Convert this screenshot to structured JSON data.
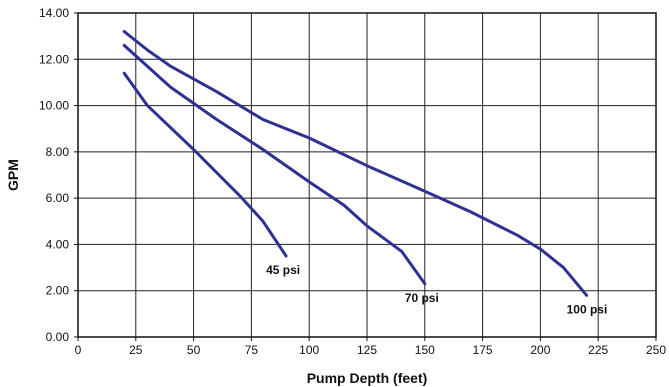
{
  "chart_data": {
    "type": "line",
    "title": "",
    "xlabel": "Pump Depth (feet)",
    "ylabel": "GPM",
    "xlim": [
      0,
      250
    ],
    "ylim": [
      0,
      14
    ],
    "x_ticks": [
      "0",
      "25",
      "50",
      "75",
      "100",
      "125",
      "150",
      "175",
      "200",
      "225",
      "250"
    ],
    "y_ticks": [
      "0.00",
      "2.00",
      "4.00",
      "6.00",
      "8.00",
      "10.00",
      "12.00",
      "14.00"
    ],
    "grid": true,
    "legend": "none",
    "line_color": "#2e3192",
    "series": [
      {
        "name": "45 psi",
        "points": [
          [
            20,
            11.4
          ],
          [
            30,
            10.0
          ],
          [
            50,
            8.1
          ],
          [
            70,
            6.1
          ],
          [
            80,
            5.0
          ],
          [
            90,
            3.5
          ]
        ]
      },
      {
        "name": "70 psi",
        "points": [
          [
            20,
            12.6
          ],
          [
            40,
            10.8
          ],
          [
            60,
            9.4
          ],
          [
            80,
            8.1
          ],
          [
            100,
            6.7
          ],
          [
            115,
            5.7
          ],
          [
            125,
            4.8
          ],
          [
            140,
            3.7
          ],
          [
            150,
            2.3
          ]
        ]
      },
      {
        "name": "100 psi",
        "points": [
          [
            20,
            13.2
          ],
          [
            30,
            12.4
          ],
          [
            40,
            11.7
          ],
          [
            60,
            10.6
          ],
          [
            80,
            9.4
          ],
          [
            100,
            8.6
          ],
          [
            125,
            7.4
          ],
          [
            150,
            6.3
          ],
          [
            170,
            5.4
          ],
          [
            190,
            4.4
          ],
          [
            200,
            3.8
          ],
          [
            210,
            3.0
          ],
          [
            220,
            1.8
          ]
        ]
      }
    ]
  }
}
